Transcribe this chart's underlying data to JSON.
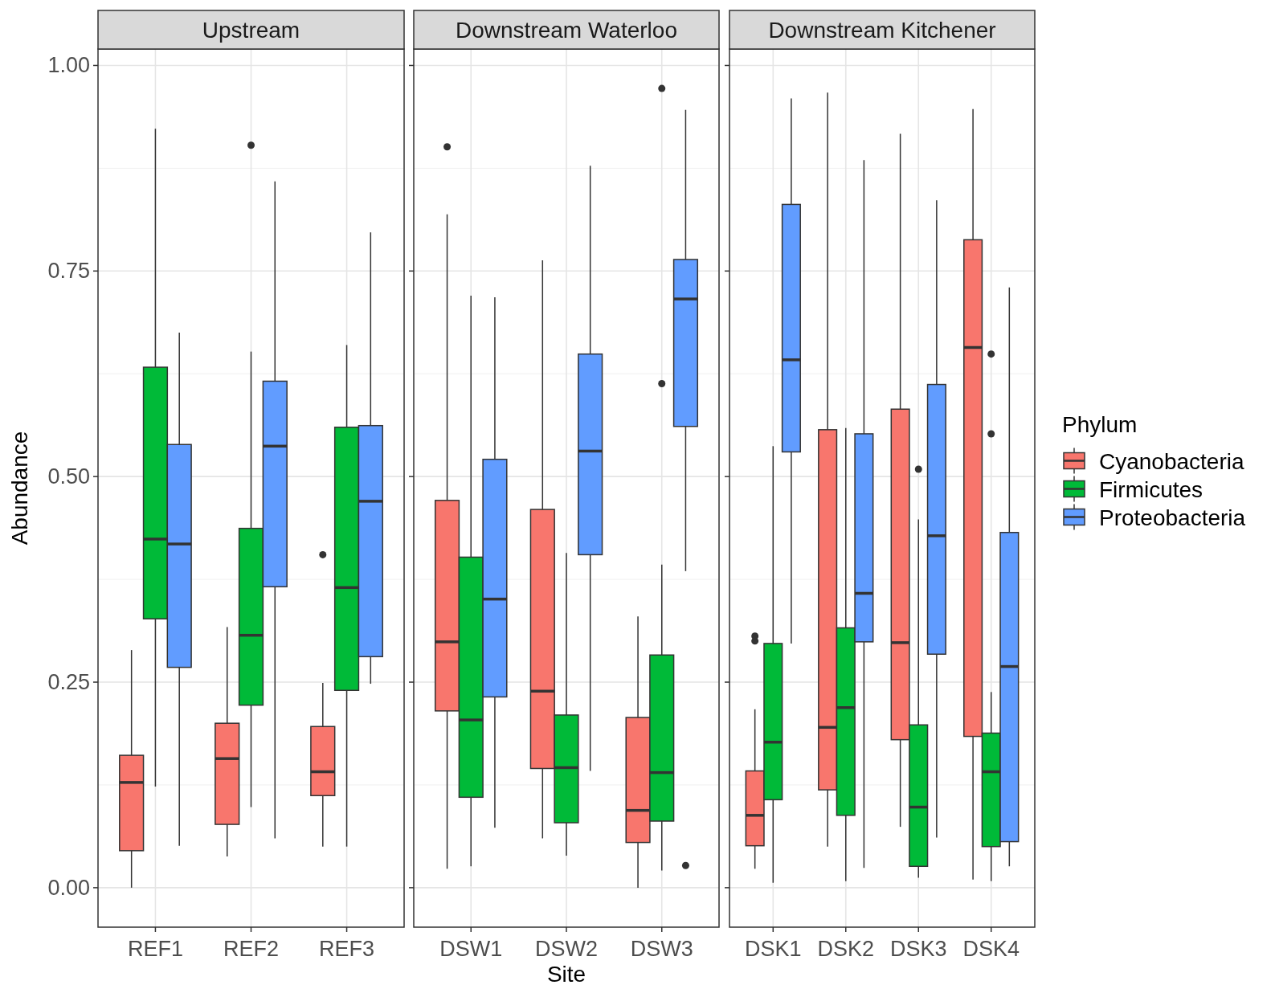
{
  "chart_data": [
    {
      "type": "box",
      "title": "Upstream",
      "ylabel": "Abundance",
      "categories": [
        "REF1",
        "REF2",
        "REF3"
      ],
      "ylim": [
        -0.048,
        1.02
      ],
      "yticks": [
        {
          "value": 0,
          "label": "0.00"
        },
        {
          "value": 0.25,
          "label": "0.25"
        },
        {
          "value": 0.5,
          "label": "0.50"
        },
        {
          "value": 0.75,
          "label": "0.75"
        },
        {
          "value": 1,
          "label": "1.00"
        }
      ],
      "grid": true,
      "series": [
        {
          "color": "#f8766d",
          "boxes": [
            {
              "low": 0,
              "q1": 0.045,
              "median": 0.128,
              "q3": 0.161,
              "high": 0.289
            },
            {
              "low": 0.038,
              "q1": 0.077,
              "median": 0.157,
              "q3": 0.2,
              "high": 0.317
            },
            {
              "low": 0.05,
              "q1": 0.112,
              "median": 0.141,
              "q3": 0.196,
              "high": 0.249,
              "outliers": [
                0.405
              ]
            }
          ]
        },
        {
          "color": "#00ba38",
          "boxes": [
            {
              "low": 0.123,
              "q1": 0.327,
              "median": 0.424,
              "q3": 0.633,
              "high": 0.923
            },
            {
              "low": 0.098,
              "q1": 0.222,
              "median": 0.307,
              "q3": 0.437,
              "high": 0.652,
              "outliers": [
                0.903
              ]
            },
            {
              "low": 0.05,
              "q1": 0.24,
              "median": 0.365,
              "q3": 0.56,
              "high": 0.66
            }
          ]
        },
        {
          "color": "#619cff",
          "boxes": [
            {
              "low": 0.051,
              "q1": 0.268,
              "median": 0.418,
              "q3": 0.539,
              "high": 0.675
            },
            {
              "low": 0.06,
              "q1": 0.366,
              "median": 0.537,
              "q3": 0.616,
              "high": 0.859
            },
            {
              "low": 0.248,
              "q1": 0.281,
              "median": 0.47,
              "q3": 0.562,
              "high": 0.797
            }
          ]
        }
      ]
    },
    {
      "type": "box",
      "title": "Downstream Waterloo",
      "xlabel": "Site",
      "categories": [
        "DSW1",
        "DSW2",
        "DSW3"
      ],
      "ylim": [
        -0.048,
        1.02
      ],
      "yticks": [
        {
          "value": 0,
          "label": null
        },
        {
          "value": 0.25,
          "label": null
        },
        {
          "value": 0.5,
          "label": null
        },
        {
          "value": 0.75,
          "label": null
        },
        {
          "value": 1,
          "label": null
        }
      ],
      "tick_labels": "x",
      "grid": true,
      "series": [
        {
          "color": "#f8766d",
          "boxes": [
            {
              "low": 0.023,
              "q1": 0.215,
              "median": 0.299,
              "q3": 0.471,
              "high": 0.819,
              "outliers": [
                0.901
              ]
            },
            {
              "low": 0.06,
              "q1": 0.145,
              "median": 0.239,
              "q3": 0.46,
              "high": 0.763
            },
            {
              "low": 0,
              "q1": 0.055,
              "median": 0.094,
              "q3": 0.207,
              "high": 0.33
            }
          ]
        },
        {
          "color": "#00ba38",
          "boxes": [
            {
              "low": 0.026,
              "q1": 0.11,
              "median": 0.204,
              "q3": 0.402,
              "high": 0.72
            },
            {
              "low": 0.039,
              "q1": 0.079,
              "median": 0.146,
              "q3": 0.21,
              "high": 0.407
            },
            {
              "low": 0.021,
              "q1": 0.081,
              "median": 0.14,
              "q3": 0.283,
              "high": 0.393,
              "outliers": [
                0.613,
                0.972
              ]
            }
          ]
        },
        {
          "color": "#619cff",
          "boxes": [
            {
              "low": 0.073,
              "q1": 0.232,
              "median": 0.351,
              "q3": 0.521,
              "high": 0.718
            },
            {
              "low": 0.142,
              "q1": 0.405,
              "median": 0.531,
              "q3": 0.649,
              "high": 0.878
            },
            {
              "low": 0.385,
              "q1": 0.561,
              "median": 0.716,
              "q3": 0.764,
              "high": 0.946,
              "outliers": [
                0.027
              ]
            }
          ]
        }
      ]
    },
    {
      "type": "box",
      "title": "Downstream Kitchener",
      "legend_title": "Phylum",
      "legend": "right",
      "categories": [
        "DSK1",
        "DSK2",
        "DSK3",
        "DSK4"
      ],
      "ylim": [
        -0.048,
        1.02
      ],
      "yticks": [
        {
          "value": 0,
          "label": null
        },
        {
          "value": 0.25,
          "label": null
        },
        {
          "value": 0.5,
          "label": null
        },
        {
          "value": 0.75,
          "label": null
        },
        {
          "value": 1,
          "label": null
        }
      ],
      "tick_labels": "x",
      "grid": true,
      "series": [
        {
          "name": "Cyanobacteria",
          "color": "#f8766d",
          "boxes": [
            {
              "low": 0.023,
              "q1": 0.051,
              "median": 0.088,
              "q3": 0.142,
              "high": 0.217,
              "outliers": [
                0.3,
                0.306
              ]
            },
            {
              "low": 0.05,
              "q1": 0.119,
              "median": 0.195,
              "q3": 0.557,
              "high": 0.967
            },
            {
              "low": 0.074,
              "q1": 0.18,
              "median": 0.298,
              "q3": 0.582,
              "high": 0.917
            },
            {
              "low": 0.01,
              "q1": 0.184,
              "median": 0.657,
              "q3": 0.788,
              "high": 0.947
            }
          ]
        },
        {
          "name": "Firmicutes",
          "color": "#00ba38",
          "boxes": [
            {
              "low": 0.006,
              "q1": 0.107,
              "median": 0.177,
              "q3": 0.297,
              "high": 0.537
            },
            {
              "low": 0.008,
              "q1": 0.088,
              "median": 0.219,
              "q3": 0.316,
              "high": 0.559
            },
            {
              "low": 0.012,
              "q1": 0.026,
              "median": 0.098,
              "q3": 0.198,
              "high": 0.448,
              "outliers": [
                0.509
              ]
            },
            {
              "low": 0.008,
              "q1": 0.05,
              "median": 0.141,
              "q3": 0.188,
              "high": 0.238,
              "outliers": [
                0.552,
                0.649
              ]
            }
          ]
        },
        {
          "name": "Proteobacteria",
          "color": "#619cff",
          "boxes": [
            {
              "low": 0.297,
              "q1": 0.53,
              "median": 0.642,
              "q3": 0.831,
              "high": 0.96
            },
            {
              "low": 0.024,
              "q1": 0.299,
              "median": 0.358,
              "q3": 0.552,
              "high": 0.885
            },
            {
              "low": 0.061,
              "q1": 0.284,
              "median": 0.428,
              "q3": 0.612,
              "high": 0.836
            },
            {
              "low": 0.026,
              "q1": 0.056,
              "median": 0.269,
              "q3": 0.432,
              "high": 0.73
            }
          ]
        }
      ]
    }
  ]
}
